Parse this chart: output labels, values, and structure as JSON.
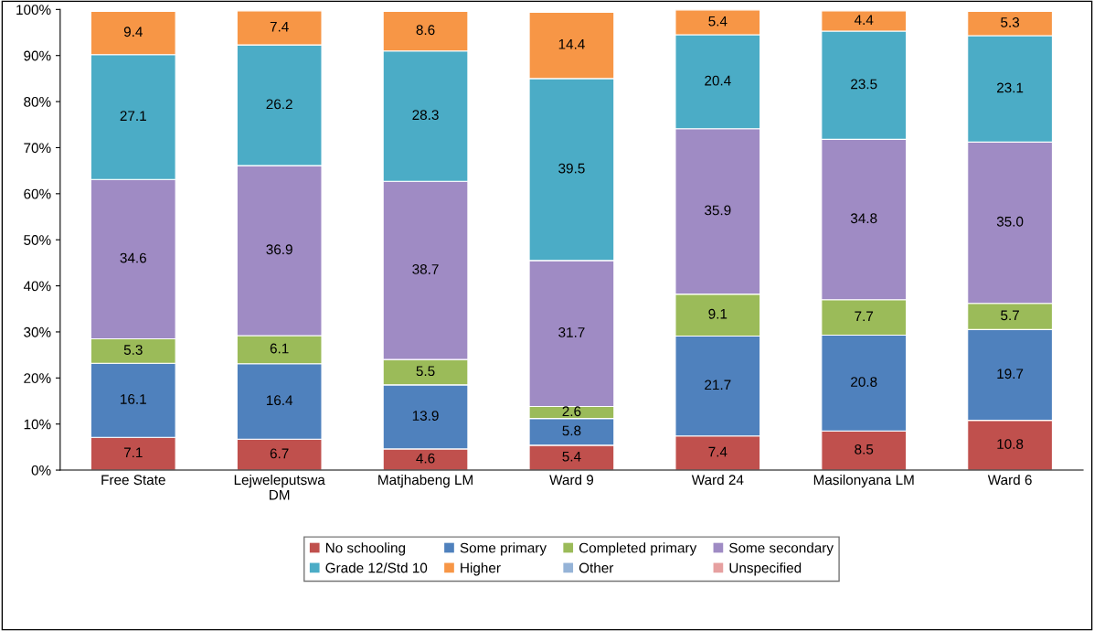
{
  "chart_data": {
    "type": "bar",
    "stacked": true,
    "categories": [
      "Free State",
      "Lejweleputswa\nDM",
      "Matjhabeng LM",
      "Ward 9",
      "Ward 24",
      "Masilonyana LM",
      "Ward 6"
    ],
    "ylim": [
      0,
      100
    ],
    "yticks": [
      {
        "value": 0,
        "label": "0%"
      },
      {
        "value": 10,
        "label": "10%"
      },
      {
        "value": 20,
        "label": "20%"
      },
      {
        "value": 30,
        "label": "30%"
      },
      {
        "value": 40,
        "label": "40%"
      },
      {
        "value": 50,
        "label": "50%"
      },
      {
        "value": 60,
        "label": "60%"
      },
      {
        "value": 70,
        "label": "70%"
      },
      {
        "value": 80,
        "label": "80%"
      },
      {
        "value": 90,
        "label": "90%"
      },
      {
        "value": 100,
        "label": "100%"
      }
    ],
    "grid": false,
    "legend": "bottom",
    "series": [
      {
        "name": "No schooling",
        "color": "#c0504d",
        "values": [
          7.1,
          6.7,
          4.6,
          5.4,
          7.4,
          8.5,
          10.8
        ],
        "value_labels": [
          "7.1",
          "6.7",
          "4.6",
          "5.4",
          "7.4",
          "8.5",
          "10.8"
        ]
      },
      {
        "name": "Some primary",
        "color": "#4f81bd",
        "values": [
          16.1,
          16.4,
          13.9,
          5.8,
          21.7,
          20.8,
          19.7
        ],
        "value_labels": [
          "16.1",
          "16.4",
          "13.9",
          "5.8",
          "21.7",
          "20.8",
          "19.7"
        ]
      },
      {
        "name": "Completed primary",
        "color": "#9bbb59",
        "values": [
          5.3,
          6.1,
          5.5,
          2.6,
          9.1,
          7.7,
          5.7
        ],
        "value_labels": [
          "5.3",
          "6.1",
          "5.5",
          "2.6",
          "9.1",
          "7.7",
          "5.7"
        ]
      },
      {
        "name": "Some secondary",
        "color": "#9f8bc4",
        "values": [
          34.6,
          36.9,
          38.7,
          31.7,
          35.9,
          34.8,
          35.0
        ],
        "value_labels": [
          "34.6",
          "36.9",
          "38.7",
          "31.7",
          "35.9",
          "34.8",
          "35.0"
        ]
      },
      {
        "name": "Grade 12/Std 10",
        "color": "#4bacc6",
        "values": [
          27.1,
          26.2,
          28.3,
          39.5,
          20.4,
          23.5,
          23.1
        ],
        "value_labels": [
          "27.1",
          "26.2",
          "28.3",
          "39.5",
          "20.4",
          "23.5",
          "23.1"
        ]
      },
      {
        "name": "Higher",
        "color": "#f79646",
        "values": [
          9.4,
          7.4,
          8.6,
          14.4,
          5.4,
          4.4,
          5.3
        ],
        "value_labels": [
          "9.4",
          "7.4",
          "8.6",
          "14.4",
          "5.4",
          "4.4",
          "5.3"
        ]
      },
      {
        "name": "Other",
        "color": "#95b3d7",
        "values": [
          null,
          null,
          null,
          null,
          null,
          null,
          null
        ]
      },
      {
        "name": "Unspecified",
        "color": "#e6a0a0",
        "values": [
          null,
          null,
          null,
          null,
          null,
          null,
          null
        ]
      }
    ]
  }
}
